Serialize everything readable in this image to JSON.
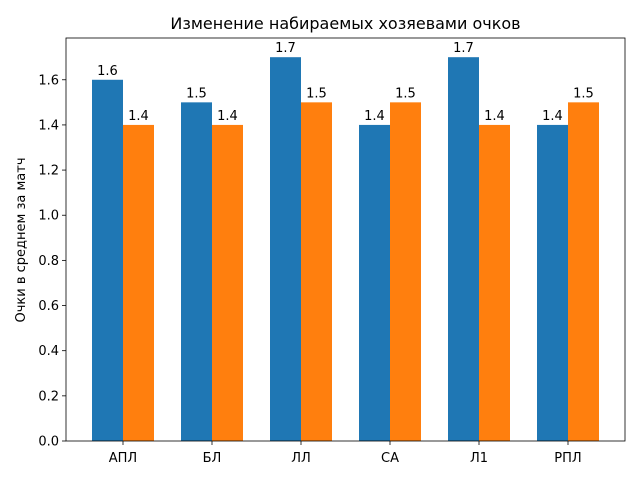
{
  "chart_data": {
    "type": "bar",
    "title": "Изменение набираемых хозяевами очков",
    "xlabel": "",
    "ylabel": "Очки в среднем за матч",
    "categories": [
      "АПЛ",
      "БЛ",
      "ЛЛ",
      "СА",
      "Л1",
      "РПЛ"
    ],
    "series": [
      {
        "name": "series-1",
        "color": "#1f77b4",
        "values": [
          1.6,
          1.5,
          1.7,
          1.4,
          1.7,
          1.4
        ]
      },
      {
        "name": "series-2",
        "color": "#ff7f0e",
        "values": [
          1.4,
          1.4,
          1.5,
          1.5,
          1.4,
          1.5
        ]
      }
    ],
    "ylim": [
      0,
      1.785
    ],
    "yticks": [
      0.0,
      0.2,
      0.4,
      0.6,
      0.8,
      1.0,
      1.2,
      1.4,
      1.6
    ],
    "grid": false,
    "data_labels": true
  }
}
